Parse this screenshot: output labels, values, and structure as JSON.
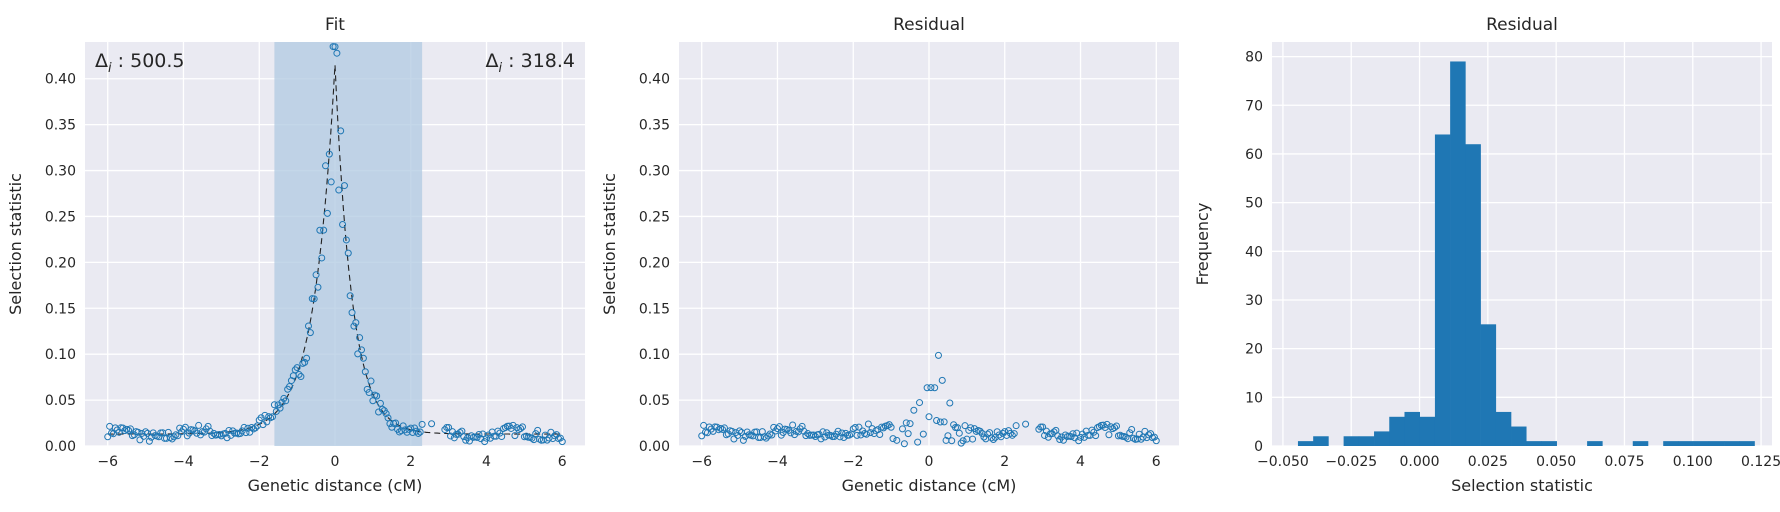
{
  "chart_data": [
    {
      "type": "scatter",
      "title": "Fit",
      "xlabel": "Genetic distance (cM)",
      "ylabel": "Selection statistic",
      "xlim": [
        -6.6,
        6.6
      ],
      "ylim": [
        0,
        0.44
      ],
      "xticks": [
        -6,
        -4,
        -2,
        0,
        2,
        4,
        6
      ],
      "xtick_labels": [
        "−6",
        "−4",
        "−2",
        "0",
        "2",
        "4",
        "6"
      ],
      "yticks": [
        0,
        0.05,
        0.1,
        0.15,
        0.2,
        0.25,
        0.3,
        0.35,
        0.4
      ],
      "ytick_labels": [
        "0.00",
        "0.05",
        "0.10",
        "0.15",
        "0.20",
        "0.25",
        "0.30",
        "0.35",
        "0.40"
      ],
      "shaded_region": [
        -1.6,
        2.3
      ],
      "annotations": [
        {
          "name": "delta",
          "sub": "i",
          "value": " : 500.5",
          "align": "left"
        },
        {
          "name": "delta",
          "sub": "i",
          "value": " : 318.4",
          "align": "right"
        }
      ],
      "fit_model": {
        "peak_x": 0.0,
        "peak_y": 0.415,
        "baseline": 0.013,
        "left_decay": 0.55,
        "right_decay": 0.45
      },
      "point_color": "#1f77b4",
      "shade_color": "#b0c9e2"
    },
    {
      "type": "scatter",
      "title": "Residual",
      "xlabel": "Genetic distance (cM)",
      "ylabel": "Selection statistic",
      "xlim": [
        -6.6,
        6.6
      ],
      "ylim": [
        0,
        0.44
      ],
      "xticks": [
        -6,
        -4,
        -2,
        0,
        2,
        4,
        6
      ],
      "xtick_labels": [
        "−6",
        "−4",
        "−2",
        "0",
        "2",
        "4",
        "6"
      ],
      "yticks": [
        0,
        0.05,
        0.1,
        0.15,
        0.2,
        0.25,
        0.3,
        0.35,
        0.4
      ],
      "ytick_labels": [
        "0.00",
        "0.05",
        "0.10",
        "0.15",
        "0.20",
        "0.25",
        "0.30",
        "0.35",
        "0.40"
      ],
      "point_color": "#1f77b4"
    },
    {
      "type": "bar",
      "title": "Residual",
      "xlabel": "Selection statistic",
      "ylabel": "Frequency",
      "xlim": [
        -0.054,
        0.129
      ],
      "ylim": [
        0,
        83
      ],
      "xticks": [
        -0.05,
        -0.025,
        0,
        0.025,
        0.05,
        0.075,
        0.1,
        0.125
      ],
      "xtick_labels": [
        "−0.050",
        "−0.025",
        "0.000",
        "0.025",
        "0.050",
        "0.075",
        "0.100",
        "0.125"
      ],
      "yticks": [
        0,
        10,
        20,
        30,
        40,
        50,
        60,
        70,
        80
      ],
      "ytick_labels": [
        "0",
        "10",
        "20",
        "30",
        "40",
        "50",
        "60",
        "70",
        "80"
      ],
      "bin_start": -0.0445,
      "bin_width": 0.00557,
      "counts": [
        1,
        2,
        0,
        2,
        2,
        3,
        6,
        7,
        6,
        64,
        79,
        62,
        25,
        7,
        4,
        1,
        1,
        0,
        0,
        1,
        0,
        0,
        1,
        0,
        1,
        1,
        1,
        1,
        1,
        1
      ],
      "bar_color": "#1f77b4"
    }
  ]
}
